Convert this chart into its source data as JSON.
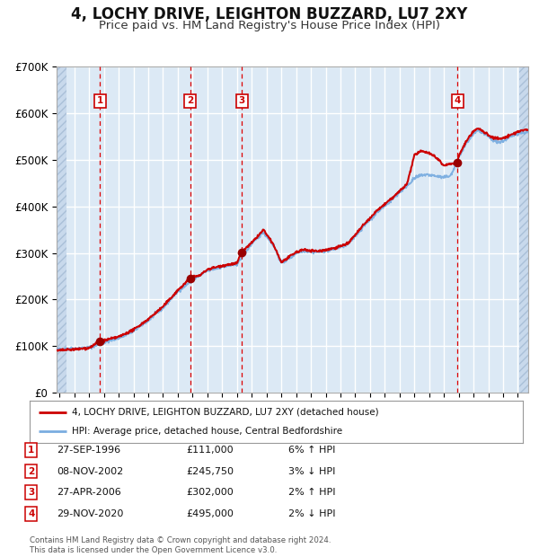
{
  "title": "4, LOCHY DRIVE, LEIGHTON BUZZARD, LU7 2XY",
  "subtitle": "Price paid vs. HM Land Registry's House Price Index (HPI)",
  "title_fontsize": 12,
  "subtitle_fontsize": 9.5,
  "background_color": "#dce9f5",
  "grid_color": "#ffffff",
  "red_line_color": "#cc0000",
  "blue_line_color": "#7aade0",
  "vline_color": "#dd0000",
  "sale_marker_color": "#990000",
  "sale_points": [
    {
      "year": 1996.74,
      "price": 111000,
      "label": "1"
    },
    {
      "year": 2002.85,
      "price": 245750,
      "label": "2"
    },
    {
      "year": 2006.32,
      "price": 302000,
      "label": "3"
    },
    {
      "year": 2020.91,
      "price": 495000,
      "label": "4"
    }
  ],
  "ylim": [
    0,
    700000
  ],
  "yticks": [
    0,
    100000,
    200000,
    300000,
    400000,
    500000,
    600000,
    700000
  ],
  "ytick_labels": [
    "£0",
    "£100K",
    "£200K",
    "£300K",
    "£400K",
    "£500K",
    "£600K",
    "£700K"
  ],
  "xlim_start": 1993.8,
  "xlim_end": 2025.7,
  "hatch_left_end": 1994.45,
  "hatch_right_start": 2025.1,
  "legend_entries": [
    "4, LOCHY DRIVE, LEIGHTON BUZZARD, LU7 2XY (detached house)",
    "HPI: Average price, detached house, Central Bedfordshire"
  ],
  "table_rows": [
    [
      "1",
      "27-SEP-1996",
      "£111,000",
      "6% ↑ HPI"
    ],
    [
      "2",
      "08-NOV-2002",
      "£245,750",
      "3% ↓ HPI"
    ],
    [
      "3",
      "27-APR-2006",
      "£302,000",
      "2% ↑ HPI"
    ],
    [
      "4",
      "29-NOV-2020",
      "£495,000",
      "2% ↓ HPI"
    ]
  ],
  "footnote": "Contains HM Land Registry data © Crown copyright and database right 2024.\nThis data is licensed under the Open Government Licence v3.0."
}
